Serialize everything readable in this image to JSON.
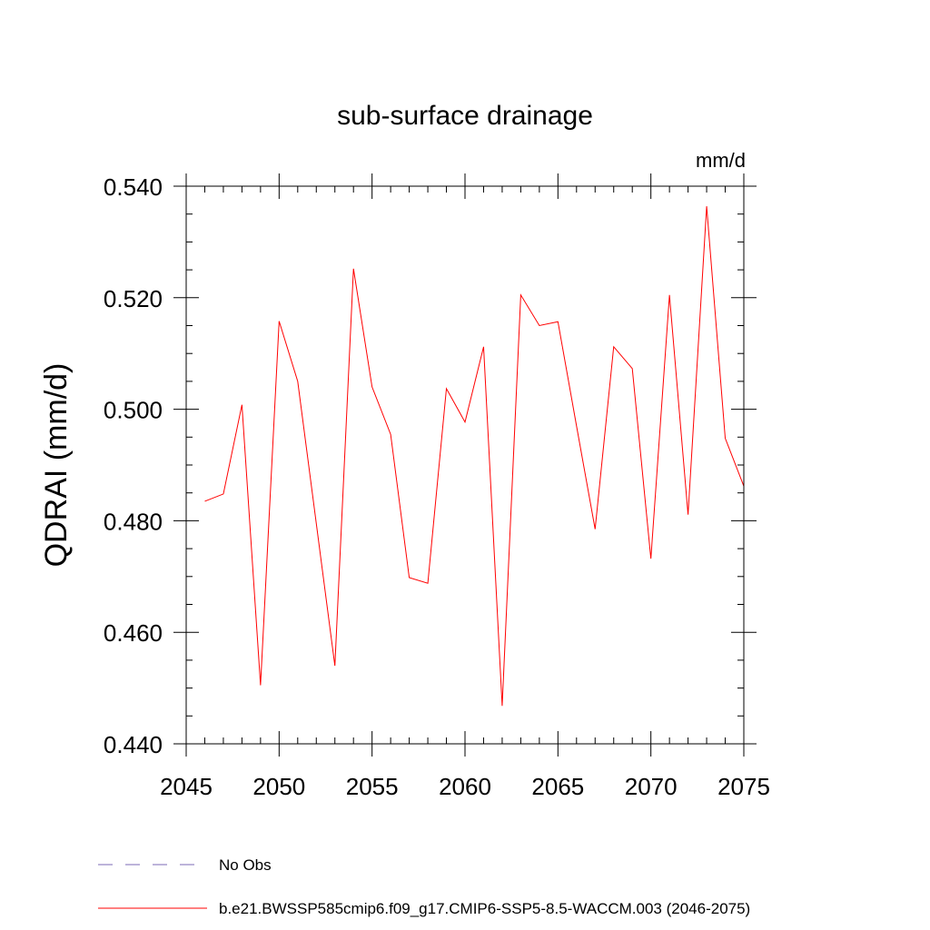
{
  "chart_data": {
    "type": "line",
    "title": "sub-surface drainage",
    "units_label": "mm/d",
    "ylabel": "QDRAI  (mm/d)",
    "xlabel": "",
    "xlim": [
      2045,
      2075
    ],
    "ylim": [
      0.44,
      0.54
    ],
    "x_ticks": [
      2045,
      2050,
      2055,
      2060,
      2065,
      2070,
      2075
    ],
    "x_tick_labels": [
      "2045",
      "2050",
      "2055",
      "2060",
      "2065",
      "2070",
      "2075"
    ],
    "y_ticks": [
      0.44,
      0.46,
      0.48,
      0.5,
      0.52,
      0.54
    ],
    "y_tick_labels": [
      "0.440",
      "0.460",
      "0.480",
      "0.500",
      "0.520",
      "0.540"
    ],
    "x_minor_step": 1,
    "y_minor_step": 0.005,
    "grid": false,
    "series": [
      {
        "name": "b.e21.BWSSP585cmip6.f09_g17.CMIP6-SSP5-8.5-WACCM.003 (2046-2075)",
        "color": "#ff0000",
        "dash": "solid",
        "x": [
          2046,
          2047,
          2048,
          2049,
          2050,
          2051,
          2052,
          2053,
          2054,
          2055,
          2056,
          2057,
          2058,
          2059,
          2060,
          2061,
          2062,
          2063,
          2064,
          2065,
          2066,
          2067,
          2068,
          2069,
          2070,
          2071,
          2072,
          2073,
          2074,
          2075
        ],
        "values": [
          0.4835,
          0.4848,
          0.5008,
          0.4505,
          0.5158,
          0.505,
          0.4795,
          0.454,
          0.5252,
          0.504,
          0.4955,
          0.4698,
          0.4688,
          0.5037,
          0.4977,
          0.5112,
          0.4468,
          0.5205,
          0.515,
          0.5157,
          0.497,
          0.4785,
          0.5112,
          0.5073,
          0.4732,
          0.5205,
          0.4811,
          0.5364,
          0.4948,
          0.4862
        ]
      }
    ],
    "legend": [
      {
        "label": "No Obs",
        "color": "#7b68b5",
        "dash": "dashed"
      },
      {
        "label": "b.e21.BWSSP585cmip6.f09_g17.CMIP6-SSP5-8.5-WACCM.003 (2046-2075)",
        "color": "#ff0000",
        "dash": "solid"
      }
    ],
    "legend_position": "bottom"
  }
}
